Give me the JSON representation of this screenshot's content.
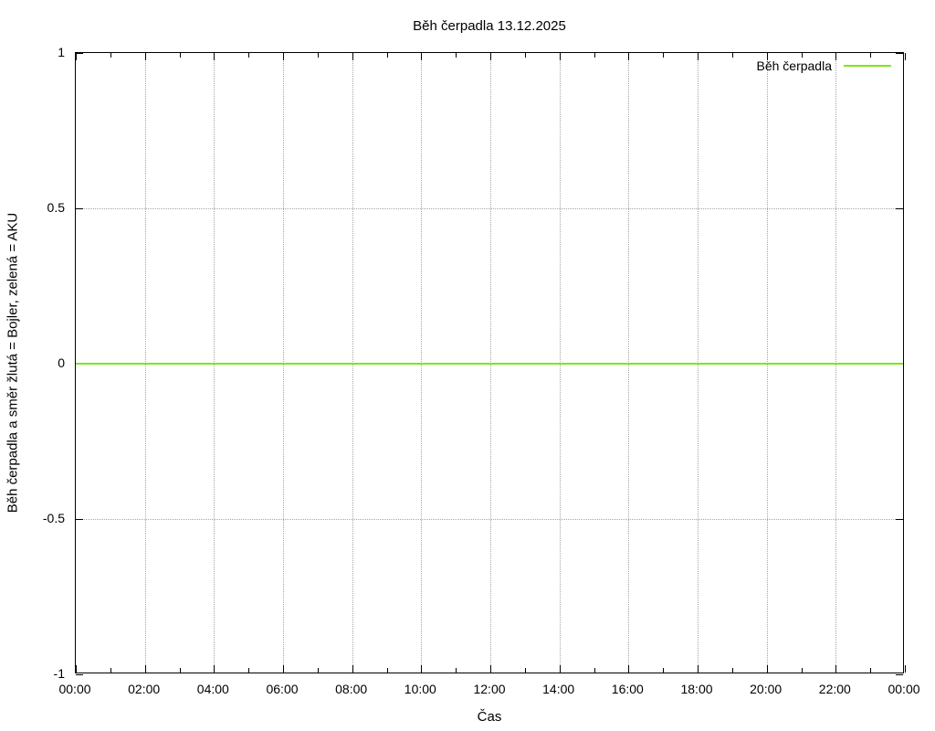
{
  "title": "Běh čerpadla 13.12.2025",
  "colors": {
    "background": "#ffffff",
    "axis": "#000000",
    "grid": "#a6a6a6",
    "series_green": "#7ce817"
  },
  "legend": {
    "position": "top-right-inside",
    "entries": [
      {
        "label": "Běh čerpadla",
        "color": "#7ce817"
      }
    ]
  },
  "chart_data": {
    "type": "line",
    "title": "Běh čerpadla 13.12.2025",
    "xlabel": "Čas",
    "ylabel": "Běh čerpadla a směr žlutá = Bojler, zelená = AKU",
    "x_tick_labels": [
      "00:00",
      "02:00",
      "04:00",
      "06:00",
      "08:00",
      "10:00",
      "12:00",
      "14:00",
      "16:00",
      "18:00",
      "20:00",
      "22:00",
      "00:00"
    ],
    "x_minor_ticks_between_majors": 1,
    "xlim_hours": [
      0,
      24
    ],
    "y_tick_labels": [
      "-1",
      "-0.5",
      "0",
      "0.5",
      "1"
    ],
    "y_ticks": [
      -1,
      -0.5,
      0,
      0.5,
      1
    ],
    "ylim": [
      -1,
      1
    ],
    "grid": true,
    "legend_position": "top-right-inside",
    "series": [
      {
        "name": "Běh čerpadla",
        "color": "#7ce817",
        "x_hours": [
          0,
          24
        ],
        "values": [
          0,
          0
        ]
      }
    ]
  }
}
